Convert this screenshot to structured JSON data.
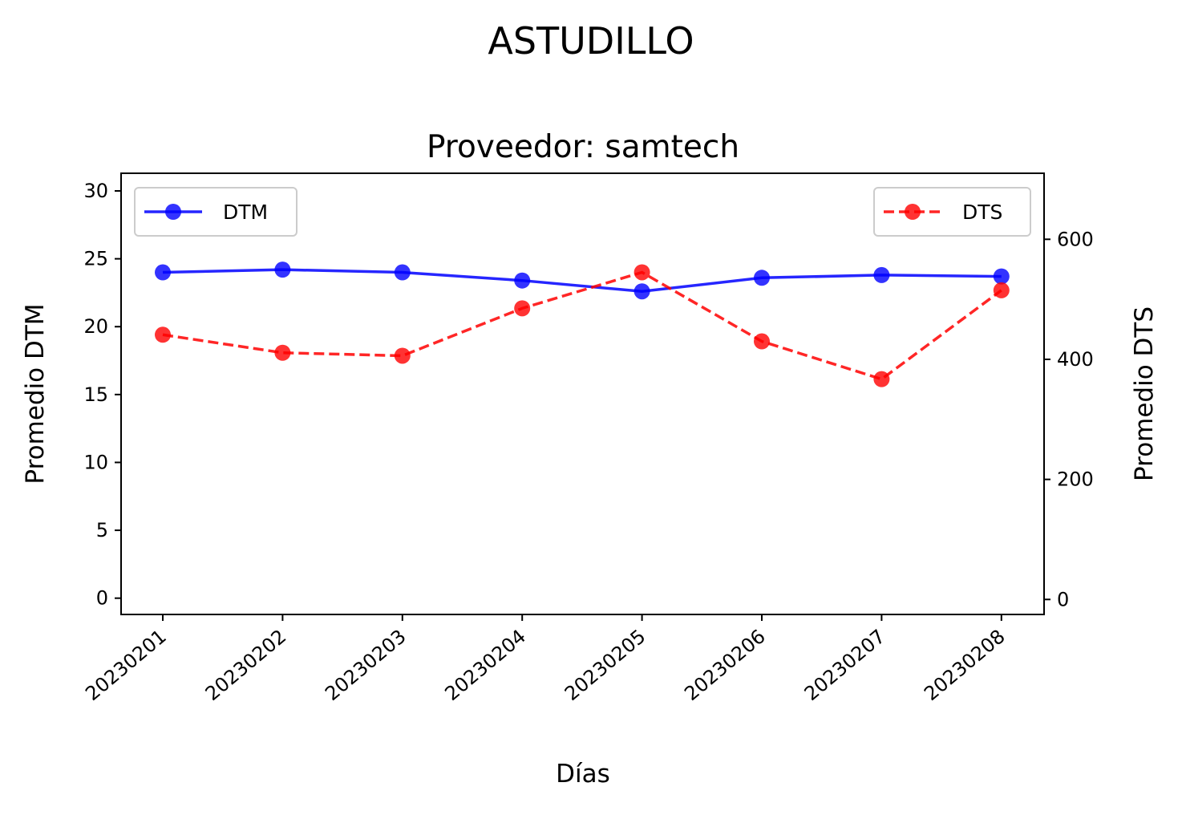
{
  "chart_data": {
    "type": "line",
    "suptitle": "ASTUDILLO",
    "title": "Proveedor: samtech",
    "xlabel": "Días",
    "ylabel_left": "Promedio DTM",
    "ylabel_right": "Promedio DTS",
    "categories": [
      "20230201",
      "20230202",
      "20230203",
      "20230204",
      "20230205",
      "20230206",
      "20230207",
      "20230208"
    ],
    "series": [
      {
        "name": "DTM",
        "axis": "left",
        "color": "#0000ff",
        "line_style": "solid",
        "marker": "circle",
        "values": [
          24.0,
          24.2,
          24.0,
          23.4,
          22.6,
          23.6,
          23.8,
          23.7
        ]
      },
      {
        "name": "DTS",
        "axis": "right",
        "color": "#ff0000",
        "line_style": "dashed",
        "marker": "circle",
        "values": [
          441,
          411,
          406,
          485,
          545,
          430,
          367,
          515
        ]
      }
    ],
    "y_left": {
      "ylim": [
        -1.2,
        31.3
      ],
      "ticks": [
        0,
        5,
        10,
        15,
        20,
        25,
        30
      ],
      "tick_labels": [
        "0",
        "5",
        "10",
        "15",
        "20",
        "25",
        "30"
      ]
    },
    "y_right": {
      "ylim": [
        -25,
        710
      ],
      "ticks": [
        0,
        200,
        400,
        600
      ],
      "tick_labels": [
        "0",
        "200",
        "400",
        "600"
      ]
    },
    "grid": false,
    "legend_left_placement": "top-left",
    "legend_right_placement": "top-right",
    "x_tick_rotation_deg": 40
  }
}
